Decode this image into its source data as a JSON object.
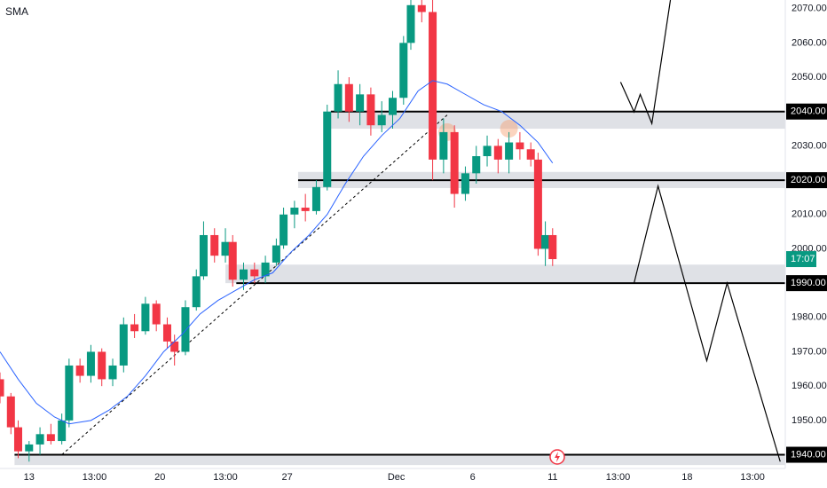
{
  "chart_data": {
    "type": "candlestick",
    "indicator_label": "SMA",
    "xlim": [
      0,
      216
    ],
    "ylim": [
      1936,
      2072.5
    ],
    "xticks": [
      {
        "value": 8,
        "label": "13"
      },
      {
        "value": 26,
        "label": "13:00"
      },
      {
        "value": 44,
        "label": "20"
      },
      {
        "value": 62,
        "label": "13:00"
      },
      {
        "value": 79,
        "label": "27"
      },
      {
        "value": 109,
        "label": "Dec"
      },
      {
        "value": 130,
        "label": "6"
      },
      {
        "value": 152,
        "label": "11"
      },
      {
        "value": 170,
        "label": "13:00"
      },
      {
        "value": 189,
        "label": "18"
      },
      {
        "value": 207,
        "label": "13:00"
      }
    ],
    "yticks": [
      {
        "value": 2070,
        "label": "2070.00"
      },
      {
        "value": 2060,
        "label": "2060.00"
      },
      {
        "value": 2050,
        "label": "2050.00"
      },
      {
        "value": 2030,
        "label": "2030.00"
      },
      {
        "value": 2010,
        "label": "2010.00"
      },
      {
        "value": 2000,
        "label": "2000.00"
      },
      {
        "value": 1980,
        "label": "1980.00"
      },
      {
        "value": 1970,
        "label": "1970.00"
      },
      {
        "value": 1960,
        "label": "1960.00"
      },
      {
        "value": 1950,
        "label": "1950.00"
      }
    ],
    "up_color": "#089981",
    "down_color": "#f23645",
    "candles": {
      "x": [
        0,
        3,
        5,
        8,
        11,
        14,
        17,
        19,
        22,
        25,
        28,
        31,
        34,
        37,
        40,
        43,
        46,
        48,
        51,
        54,
        56,
        59,
        62,
        64,
        67,
        70,
        73,
        76,
        78,
        81,
        84,
        87,
        90,
        93,
        96,
        99,
        102,
        105,
        108,
        111,
        113,
        116,
        119,
        122,
        125,
        128,
        131,
        134,
        137,
        140,
        143,
        146,
        148,
        150,
        152
      ],
      "open": [
        1962,
        1957,
        1948,
        1941,
        1943,
        1946,
        1944,
        1950,
        1966,
        1963,
        1970,
        1962,
        1966,
        1978,
        1976,
        1984,
        1978,
        1973,
        1970,
        1983,
        1992,
        2004,
        1998,
        2002,
        1991,
        1994,
        1992,
        1996,
        2001,
        2010,
        2012,
        2011,
        2018,
        2040,
        2048,
        2040,
        2045,
        2036,
        2039,
        2044,
        2060,
        2071,
        2069,
        2026,
        2034,
        2016,
        2022,
        2027,
        2030,
        2026,
        2031,
        2029,
        2026,
        2000,
        2004
      ],
      "high": [
        1964,
        1958,
        1950,
        1944,
        1948,
        1949,
        1952,
        1968,
        1968,
        1972,
        1971,
        1968,
        1980,
        1981,
        1986,
        1985,
        1980,
        1975,
        1985,
        1994,
        2008,
        2006,
        2006,
        2004,
        1996,
        1996,
        1998,
        2003,
        2012,
        2014,
        2016,
        2020,
        2042,
        2052,
        2050,
        2048,
        2047,
        2043,
        2046,
        2062,
        2073,
        2074,
        2073,
        2038,
        2036,
        2024,
        2030,
        2033,
        2032,
        2034,
        2034,
        2031,
        2028,
        2008,
        2006
      ],
      "low": [
        1955,
        1946,
        1939,
        1938,
        1940,
        1943,
        1943,
        1948,
        1961,
        1961,
        1960,
        1960,
        1964,
        1974,
        1975,
        1976,
        1971,
        1966,
        1969,
        1982,
        1991,
        1996,
        1996,
        1989,
        1988,
        1990,
        1990,
        1995,
        2000,
        2006,
        2008,
        2010,
        2017,
        2038,
        2037,
        2036,
        2033,
        2034,
        2035,
        2042,
        2058,
        2066,
        2020,
        2022,
        2012,
        2014,
        2019,
        2024,
        2022,
        2022,
        2026,
        2024,
        1998,
        1995,
        1995
      ],
      "close": [
        1957,
        1948,
        1941,
        1943,
        1946,
        1944,
        1950,
        1966,
        1963,
        1970,
        1962,
        1966,
        1978,
        1976,
        1984,
        1978,
        1973,
        1970,
        1983,
        1992,
        2004,
        1998,
        2002,
        1991,
        1994,
        1992,
        1996,
        2001,
        2010,
        2012,
        2011,
        2018,
        2040,
        2048,
        2040,
        2045,
        2036,
        2039,
        2044,
        2060,
        2071,
        2069,
        2026,
        2034,
        2016,
        2022,
        2027,
        2030,
        2026,
        2031,
        2029,
        2026,
        2000,
        2004,
        1997
      ]
    },
    "sma": {
      "color": "#2962ff",
      "x": [
        0,
        5,
        10,
        15,
        19,
        25,
        30,
        35,
        40,
        45,
        50,
        55,
        60,
        65,
        70,
        75,
        80,
        85,
        90,
        95,
        100,
        105,
        110,
        115,
        119,
        123,
        128,
        133,
        138,
        143,
        148,
        152
      ],
      "values": [
        1970,
        1962,
        1955,
        1951,
        1949,
        1950,
        1953,
        1957,
        1963,
        1970,
        1975,
        1981,
        1985,
        1988,
        1991,
        1993,
        1999,
        2004,
        2010,
        2019,
        2027,
        2033,
        2038,
        2046,
        2049,
        2048,
        2045,
        2042,
        2040,
        2036,
        2031,
        2025
      ]
    },
    "trendline": {
      "x": [
        17,
        123
      ],
      "values": [
        1940,
        2039
      ]
    },
    "zones": [
      {
        "low": 2035,
        "high": 2040,
        "from": 91
      },
      {
        "low": 2017.7,
        "high": 2022.4,
        "from": 82
      },
      {
        "low": 1990,
        "high": 1995.4,
        "from": 62
      },
      {
        "low": 1937,
        "high": 1940,
        "from": 4
      }
    ],
    "levels": [
      {
        "value": 2040,
        "label": "2040.00",
        "from": 91
      },
      {
        "value": 2020,
        "label": "2020.00",
        "from": 82
      },
      {
        "value": 1990,
        "label": "1990.00",
        "from": 65
      },
      {
        "value": 1940,
        "label": "1940.00",
        "from": 4
      }
    ],
    "projection": [
      {
        "x": [
          170.7,
          174.4,
          176.1,
          179.3,
          184.4
        ],
        "values": [
          2048.6,
          2039.9,
          2045,
          2036.5,
          2072.5
        ]
      },
      {
        "x": [
          174.4,
          181,
          194.4,
          200,
          214.6
        ],
        "values": [
          1990,
          2018.3,
          1967.4,
          1990,
          1938
        ]
      }
    ],
    "last_price": {
      "value": 1997,
      "label": "17:07"
    }
  }
}
